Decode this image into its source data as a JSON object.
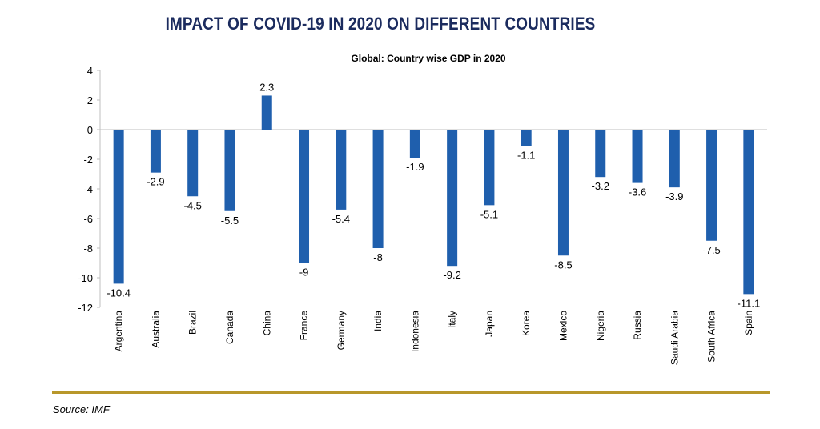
{
  "header": {
    "title": "IMPACT OF COVID-19 IN 2020 ON DIFFERENT COUNTRIES"
  },
  "footer": {
    "source": "Source: IMF"
  },
  "colors": {
    "bar": "#1f5fad",
    "title": "#1b2b5e",
    "rule": "#b8972a"
  },
  "chart_data": {
    "type": "bar",
    "title": "Global: Country wise GDP in 2020",
    "xlabel": "",
    "ylabel": "",
    "ylim": [
      -12,
      4
    ],
    "yticks": [
      4,
      2,
      0,
      -2,
      -4,
      -6,
      -8,
      -10,
      -12
    ],
    "grid": false,
    "legend": "none",
    "categories": [
      "Argentina",
      "Australia",
      "Brazil",
      "Canada",
      "China",
      "France",
      "Germany",
      "India",
      "Indonesia",
      "Italy",
      "Japan",
      "Korea",
      "Mexico",
      "Nigeria",
      "Russia",
      "Saudi Arabia",
      "South Africa",
      "Spain"
    ],
    "values": [
      -10.4,
      -2.9,
      -4.5,
      -5.5,
      2.3,
      -9,
      -5.4,
      -8,
      -1.9,
      -9.2,
      -5.1,
      -1.1,
      -8.5,
      -3.2,
      -3.6,
      -3.9,
      -7.5,
      -11.1
    ],
    "labels": [
      "-10.4",
      "-2.9",
      "-4.5",
      "-5.5",
      "2.3",
      "-9",
      "-5.4",
      "-8",
      "-1.9",
      "-9.2",
      "-5.1",
      "-1.1",
      "-8.5",
      "-3.2",
      "-3.6",
      "-3.9",
      "-7.5",
      "-11.1"
    ]
  }
}
